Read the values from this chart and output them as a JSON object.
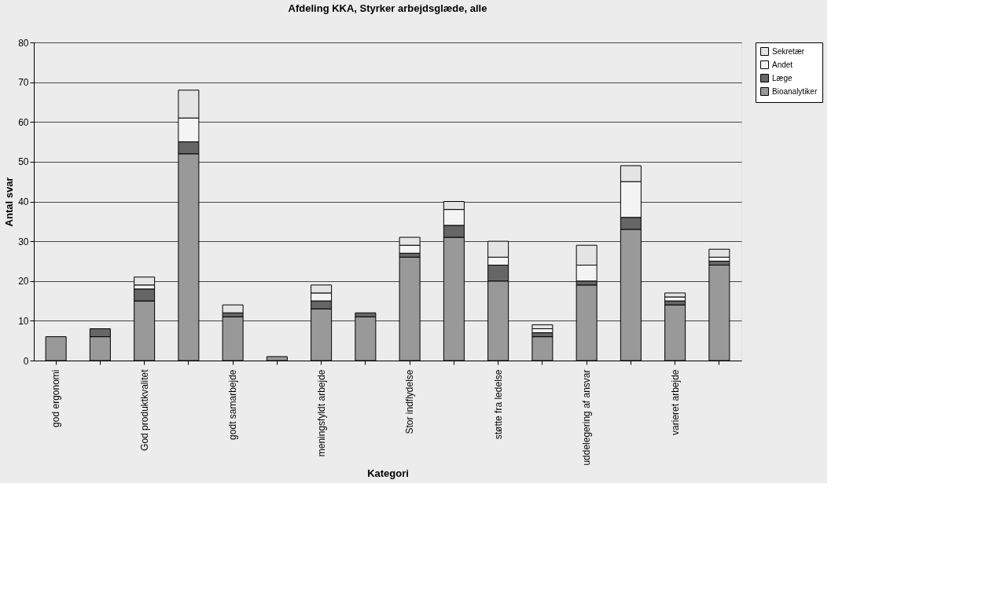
{
  "chart_data": {
    "type": "bar",
    "stacked": true,
    "title": "Afdeling KKA, Styrker arbejdsglæde, alle",
    "xlabel": "Kategori",
    "ylabel": "Antal svar",
    "categories": [
      "god ergonomi",
      null,
      "God produktkvalitet",
      null,
      "godt samarbejde",
      null,
      "meningsfyldt arbejde",
      null,
      "Stor indflydelse",
      null,
      "støtte fra ledelse",
      null,
      "uddelegering af ansvar",
      null,
      "varieret arbejde",
      null
    ],
    "series": [
      {
        "name": "Bioanalytiker",
        "color": "#999999",
        "values": [
          6,
          6,
          15,
          52,
          11,
          1,
          13,
          11,
          26,
          31,
          20,
          6,
          19,
          33,
          14,
          24
        ]
      },
      {
        "name": "Læge",
        "color": "#666666",
        "values": [
          0,
          2,
          3,
          3,
          1,
          0,
          2,
          1,
          1,
          3,
          4,
          1,
          1,
          3,
          1,
          1
        ]
      },
      {
        "name": "Andet",
        "color": "#f4f4f4",
        "values": [
          0,
          0,
          1,
          6,
          0,
          0,
          2,
          0,
          2,
          4,
          2,
          1,
          4,
          9,
          1,
          1
        ]
      },
      {
        "name": "Sekretær",
        "color": "#e4e4e4",
        "values": [
          0,
          0,
          2,
          7,
          2,
          0,
          2,
          0,
          2,
          2,
          4,
          1,
          5,
          4,
          1,
          2
        ]
      }
    ],
    "ylim": [
      0,
      80
    ],
    "yticks": [
      0,
      10,
      20,
      30,
      40,
      50,
      60,
      70,
      80
    ],
    "grid": "y",
    "legend": "right"
  }
}
